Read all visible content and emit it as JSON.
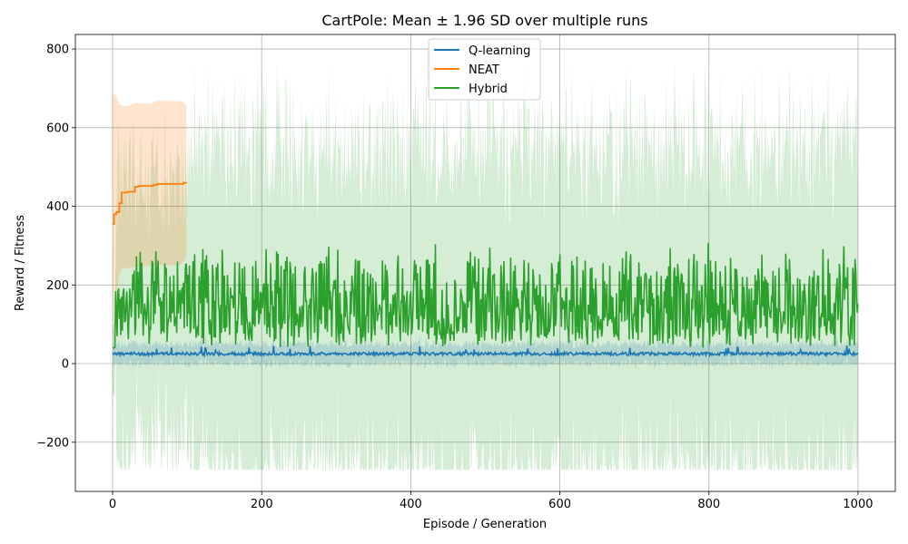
{
  "chart_data": {
    "type": "line",
    "title": "CartPole: Mean ± 1.96 SD over multiple runs",
    "xlabel": "Episode / Generation",
    "ylabel": "Reward / Fitness",
    "xlim": [
      -50,
      1050
    ],
    "ylim": [
      -325,
      837
    ],
    "xticks": [
      0,
      200,
      400,
      600,
      800,
      1000
    ],
    "yticks": [
      -200,
      0,
      200,
      400,
      600,
      800
    ],
    "xtick_labels": [
      "0",
      "200",
      "400",
      "600",
      "800",
      "1000"
    ],
    "ytick_labels": [
      "−200",
      "0",
      "200",
      "400",
      "600",
      "800"
    ],
    "grid": true,
    "legend_position": "top-center",
    "series": [
      {
        "name": "Q-learning",
        "color": "#1f77b4",
        "x_range": [
          0,
          1000
        ],
        "mean_profile": "flat ~22-28 with small noise, spikes up to ~40",
        "mean_level": 25,
        "band": [
          5,
          50
        ]
      },
      {
        "name": "NEAT",
        "color": "#ff7f0e",
        "x": [
          0,
          2,
          5,
          9,
          12,
          20,
          30,
          35,
          50,
          55,
          60,
          70,
          80,
          90,
          95,
          99
        ],
        "mean": [
          355,
          380,
          385,
          408,
          435,
          437,
          450,
          452,
          452,
          455,
          457,
          457,
          457,
          457,
          460,
          461
        ],
        "upper": [
          680,
          685,
          682,
          660,
          656,
          655,
          663,
          663,
          661,
          665,
          668,
          668,
          668,
          667,
          665,
          655
        ],
        "lower": [
          30,
          130,
          180,
          225,
          240,
          243,
          246,
          247,
          248,
          250,
          250,
          250,
          250,
          250,
          260,
          270
        ]
      },
      {
        "name": "Hybrid",
        "color": "#2ca02c",
        "x_range": [
          0,
          1000
        ],
        "mean_profile": "noisy; starts ~40, fluctuates mostly 50-250 with peaks up to ~360",
        "mean_level": 140,
        "band": [
          -270,
          770
        ]
      }
    ]
  }
}
